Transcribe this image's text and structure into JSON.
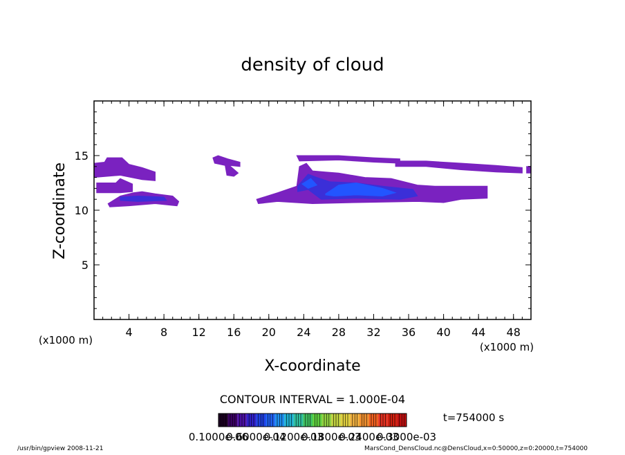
{
  "chart_data": {
    "type": "contour",
    "title": "density of cloud",
    "xlabel": "X-coordinate",
    "ylabel": "Z-coordinate",
    "x_unit": "(x1000 m)",
    "xlim": [
      0,
      50
    ],
    "ylim": [
      0,
      20
    ],
    "xticks": [
      4,
      8,
      12,
      16,
      20,
      24,
      28,
      32,
      36,
      40,
      44,
      48
    ],
    "yticks": [
      5,
      10,
      15
    ],
    "xminorticks": [
      1,
      2,
      3,
      4,
      5,
      6,
      7,
      8,
      9,
      10,
      11,
      12,
      13,
      14,
      15,
      16,
      17,
      18,
      19,
      20,
      21,
      22,
      23,
      24,
      25,
      26,
      27,
      28,
      29,
      30,
      31,
      32,
      33,
      34,
      35,
      36,
      37,
      38,
      39,
      40,
      41,
      42,
      43,
      44,
      45,
      46,
      47,
      48,
      49
    ],
    "yminorticks": [
      1,
      2,
      3,
      4,
      5,
      6,
      7,
      8,
      9,
      10,
      11,
      12,
      13,
      14,
      15,
      16,
      17,
      18,
      19
    ],
    "contour_interval": "CONTOUR INTERVAL = 1.000E-04",
    "time_label": "t=754000 s",
    "colorbar_colors": [
      "#1a0020",
      "#3a0060",
      "#4a10a0",
      "#3020c8",
      "#2040e0",
      "#2060f0",
      "#2090f0",
      "#20b0d0",
      "#30c0a0",
      "#40c060",
      "#60d040",
      "#90d040",
      "#c0d040",
      "#e0d040",
      "#f0b040",
      "#f09030",
      "#f06020",
      "#e03020",
      "#d02010",
      "#c01010"
    ],
    "colorbar_labels": [
      "0.1000e-06",
      "0.6000e-04",
      "0.1200e-03",
      "0.1800e-03",
      "0.2400e-03",
      "0.3000e-03"
    ],
    "footer_left": "/usr/bin/gpview   2008-11-21",
    "footer_right": "MarsCond_DensCloud.nc@DensCloud,x=0:50000,z=0:20000,t=754000",
    "patches": [
      {
        "value": 2e-05,
        "color": "#7a22c0",
        "x": [
          0,
          1.2,
          1.5,
          3.2,
          4,
          5.5,
          7,
          7,
          5.5,
          3,
          1.5,
          0
        ],
        "z": [
          14.3,
          14.4,
          14.8,
          14.8,
          14.2,
          13.9,
          13.5,
          12.7,
          12.8,
          13.2,
          13.1,
          13.0
        ]
      },
      {
        "value": 2e-05,
        "color": "#7a22c0",
        "x": [
          0.3,
          2.5,
          3,
          4.4,
          4.4,
          3,
          0.3
        ],
        "z": [
          12.5,
          12.5,
          12.9,
          12.4,
          11.7,
          11.6,
          11.6
        ]
      },
      {
        "value": 2e-05,
        "color": "#7a22c0",
        "x": [
          1.6,
          3,
          4.5,
          5.5,
          7,
          9,
          9.7,
          9.5,
          7,
          4,
          1.8
        ],
        "z": [
          10.6,
          11.3,
          11.6,
          11.7,
          11.5,
          11.3,
          10.8,
          10.4,
          10.6,
          10.4,
          10.3
        ]
      },
      {
        "value": 6e-05,
        "color": "#3b2fd8",
        "x": [
          3,
          5,
          8,
          8.3,
          5,
          3
        ],
        "z": [
          11.2,
          11.3,
          11.2,
          10.9,
          10.8,
          10.9
        ]
      },
      {
        "value": 2e-05,
        "color": "#7a22c0",
        "x": [
          13.6,
          14.2,
          15.3,
          16.7,
          16.7,
          15.5,
          16.5,
          16,
          15.2,
          15.0,
          13.8
        ],
        "z": [
          14.8,
          15.0,
          14.7,
          14.4,
          14.0,
          14.1,
          13.4,
          13.1,
          13.2,
          14.1,
          14.3
        ]
      },
      {
        "value": 2e-05,
        "color": "#7a22c0",
        "x": [
          18.6,
          21,
          23.2,
          23.5,
          24.3,
          25,
          26.5,
          28,
          31,
          34,
          37,
          39,
          45,
          45,
          42,
          40,
          37,
          30,
          25,
          21,
          18.8
        ],
        "z": [
          11.0,
          11.6,
          12.2,
          14.0,
          14.3,
          13.6,
          13.5,
          13.4,
          13.0,
          12.9,
          12.3,
          12.2,
          12.2,
          11.1,
          11.0,
          10.7,
          10.8,
          10.7,
          10.6,
          10.8,
          10.6
        ]
      },
      {
        "value": 2e-05,
        "color": "#7a22c0",
        "x": [
          23.2,
          28,
          32,
          35,
          35,
          32,
          28,
          23.5
        ],
        "z": [
          15.0,
          15.0,
          14.8,
          14.7,
          14.3,
          14.4,
          14.6,
          14.5
        ]
      },
      {
        "value": 2e-05,
        "color": "#7a22c0",
        "x": [
          34.5,
          38,
          42,
          46,
          49,
          49,
          46,
          42,
          38,
          34.5
        ],
        "z": [
          14.5,
          14.5,
          14.3,
          14.1,
          13.9,
          13.4,
          13.5,
          13.7,
          14.0,
          14.0
        ]
      },
      {
        "value": 2e-05,
        "color": "#7a22c0",
        "x": [
          49.5,
          50,
          50,
          49.5
        ],
        "z": [
          14.0,
          14.0,
          13.4,
          13.4
        ]
      },
      {
        "value": 6e-05,
        "color": "#3b2fd8",
        "x": [
          23.3,
          24.5,
          25.5,
          27,
          30,
          33,
          36.5,
          37,
          35,
          30,
          26,
          24.5,
          23.3
        ],
        "z": [
          12.2,
          13.3,
          13.0,
          12.6,
          12.5,
          12.2,
          11.9,
          11.3,
          11.0,
          11.1,
          11.0,
          11.9,
          11.7
        ]
      },
      {
        "value": 0.00012,
        "color": "#2255ff",
        "x": [
          26.5,
          28,
          30,
          33,
          34.5,
          33,
          30,
          27.5,
          26.5
        ],
        "z": [
          11.5,
          12.3,
          12.5,
          12.0,
          11.6,
          11.3,
          11.4,
          11.3,
          11.4
        ]
      },
      {
        "value": 0.00012,
        "color": "#2255ff",
        "x": [
          23.8,
          24.8,
          25.5,
          24.5
        ],
        "z": [
          12.4,
          12.9,
          12.3,
          12.0
        ]
      }
    ]
  }
}
